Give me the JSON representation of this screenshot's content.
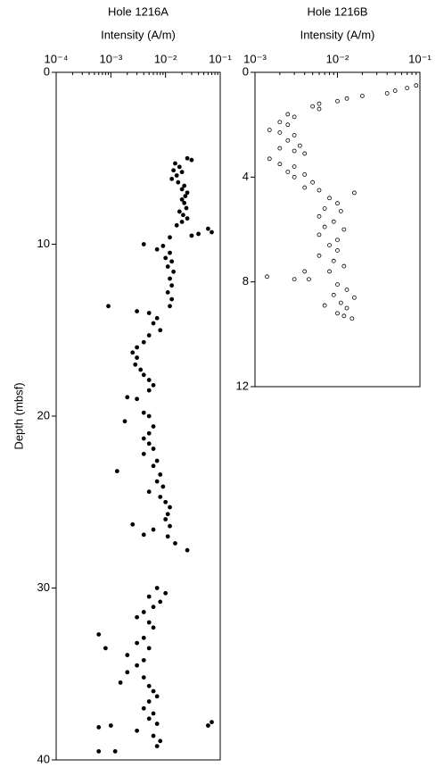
{
  "chart_data": [
    {
      "type": "scatter",
      "title": "Hole 1216A",
      "x_label": "Intensity (A/m)",
      "y_label": "Depth (mbsf)",
      "xscale": "log",
      "yinverted": true,
      "marker_fill": "#000000",
      "xlim": [
        0.0001,
        0.1
      ],
      "ylim": [
        0,
        40
      ],
      "xticks": [
        {
          "value": 0.0001,
          "label": "10⁻⁴"
        },
        {
          "value": 0.001,
          "label": "10⁻³"
        },
        {
          "value": 0.01,
          "label": "10⁻²"
        },
        {
          "value": 0.1,
          "label": "10⁻¹"
        }
      ],
      "yticks": [
        0,
        10,
        20,
        30,
        40
      ],
      "x": [
        0.025,
        0.03,
        0.015,
        0.018,
        0.014,
        0.02,
        0.016,
        0.013,
        0.017,
        0.022,
        0.02,
        0.025,
        0.023,
        0.02,
        0.022,
        0.024,
        0.018,
        0.021,
        0.025,
        0.02,
        0.016,
        0.06,
        0.07,
        0.04,
        0.03,
        0.012,
        0.004,
        0.009,
        0.007,
        0.012,
        0.01,
        0.013,
        0.011,
        0.014,
        0.012,
        0.013,
        0.011,
        0.013,
        0.012,
        0.0009,
        0.003,
        0.005,
        0.007,
        0.006,
        0.008,
        0.005,
        0.004,
        0.003,
        0.0025,
        0.003,
        0.0028,
        0.0035,
        0.004,
        0.005,
        0.006,
        0.005,
        0.002,
        0.003,
        0.004,
        0.005,
        0.0018,
        0.006,
        0.005,
        0.004,
        0.005,
        0.006,
        0.004,
        0.007,
        0.006,
        0.0013,
        0.008,
        0.007,
        0.009,
        0.005,
        0.008,
        0.01,
        0.012,
        0.011,
        0.01,
        0.0025,
        0.012,
        0.006,
        0.004,
        0.011,
        0.015,
        0.025,
        0.007,
        0.01,
        0.005,
        0.008,
        0.006,
        0.004,
        0.003,
        0.005,
        0.006,
        0.0006,
        0.004,
        0.003,
        0.0008,
        0.005,
        0.002,
        0.004,
        0.003,
        0.002,
        0.004,
        0.0015,
        0.005,
        0.006,
        0.007,
        0.005,
        0.004,
        0.006,
        0.005,
        0.007,
        0.07,
        0.06,
        0.0006,
        0.001,
        0.003,
        0.006,
        0.008,
        0.007,
        0.0006,
        0.0012
      ],
      "values": [
        5.0,
        5.1,
        5.3,
        5.5,
        5.7,
        5.8,
        6.0,
        6.2,
        6.4,
        6.6,
        6.8,
        7.0,
        7.2,
        7.4,
        7.6,
        7.9,
        8.1,
        8.3,
        8.5,
        8.7,
        8.9,
        9.1,
        9.3,
        9.4,
        9.5,
        9.6,
        10.0,
        10.1,
        10.3,
        10.5,
        10.8,
        11.0,
        11.3,
        11.6,
        12.0,
        12.4,
        12.8,
        13.2,
        13.6,
        13.6,
        13.9,
        14.0,
        14.3,
        14.6,
        15.0,
        15.3,
        15.7,
        16.0,
        16.3,
        16.6,
        17.0,
        17.3,
        17.6,
        17.9,
        18.2,
        18.5,
        18.9,
        19.0,
        19.8,
        20.0,
        20.3,
        20.6,
        21.0,
        21.3,
        21.6,
        21.9,
        22.2,
        22.6,
        22.9,
        23.2,
        23.4,
        23.8,
        24.1,
        24.4,
        24.7,
        25.0,
        25.3,
        25.7,
        26.0,
        26.3,
        26.4,
        26.6,
        26.9,
        27.0,
        27.4,
        27.8,
        30.0,
        30.3,
        30.5,
        30.8,
        31.1,
        31.4,
        31.7,
        32.0,
        32.3,
        32.7,
        32.9,
        33.2,
        33.5,
        33.5,
        33.9,
        34.2,
        34.5,
        34.9,
        35.2,
        35.5,
        35.7,
        36.0,
        36.3,
        36.6,
        37.0,
        37.3,
        37.6,
        37.9,
        37.8,
        38.0,
        38.1,
        38.0,
        38.3,
        38.6,
        38.9,
        39.2,
        39.5,
        39.5
      ]
    },
    {
      "type": "scatter",
      "title": "Hole 1216B",
      "x_label": "Intensity (A/m)",
      "xscale": "log",
      "yinverted": true,
      "marker_fill": "#ffffff",
      "xlim": [
        0.001,
        0.1
      ],
      "ylim": [
        0,
        12
      ],
      "xticks": [
        {
          "value": 0.001,
          "label": "10⁻³"
        },
        {
          "value": 0.01,
          "label": "10⁻²"
        },
        {
          "value": 0.1,
          "label": "10⁻¹"
        }
      ],
      "yticks": [
        0,
        4,
        8,
        12
      ],
      "x": [
        0.09,
        0.07,
        0.05,
        0.04,
        0.02,
        0.013,
        0.01,
        0.006,
        0.005,
        0.006,
        0.0025,
        0.003,
        0.002,
        0.0025,
        0.0015,
        0.002,
        0.003,
        0.0025,
        0.0035,
        0.002,
        0.003,
        0.004,
        0.0015,
        0.002,
        0.003,
        0.0025,
        0.004,
        0.003,
        0.005,
        0.004,
        0.006,
        0.016,
        0.008,
        0.01,
        0.007,
        0.011,
        0.006,
        0.009,
        0.007,
        0.012,
        0.006,
        0.01,
        0.008,
        0.01,
        0.006,
        0.009,
        0.012,
        0.008,
        0.004,
        0.0014,
        0.003,
        0.0045,
        0.01,
        0.013,
        0.009,
        0.016,
        0.011,
        0.007,
        0.013,
        0.01,
        0.012,
        0.015
      ],
      "values": [
        0.5,
        0.6,
        0.7,
        0.8,
        0.9,
        1.0,
        1.1,
        1.2,
        1.3,
        1.4,
        1.6,
        1.7,
        1.9,
        2.0,
        2.2,
        2.3,
        2.4,
        2.6,
        2.8,
        2.9,
        3.0,
        3.1,
        3.3,
        3.5,
        3.6,
        3.8,
        3.9,
        4.0,
        4.2,
        4.4,
        4.5,
        4.6,
        4.8,
        5.0,
        5.2,
        5.3,
        5.5,
        5.7,
        5.9,
        6.0,
        6.2,
        6.4,
        6.6,
        6.8,
        7.0,
        7.2,
        7.4,
        7.6,
        7.6,
        7.8,
        7.9,
        7.9,
        8.1,
        8.3,
        8.5,
        8.6,
        8.8,
        8.9,
        9.0,
        9.2,
        9.3,
        9.4
      ]
    }
  ]
}
